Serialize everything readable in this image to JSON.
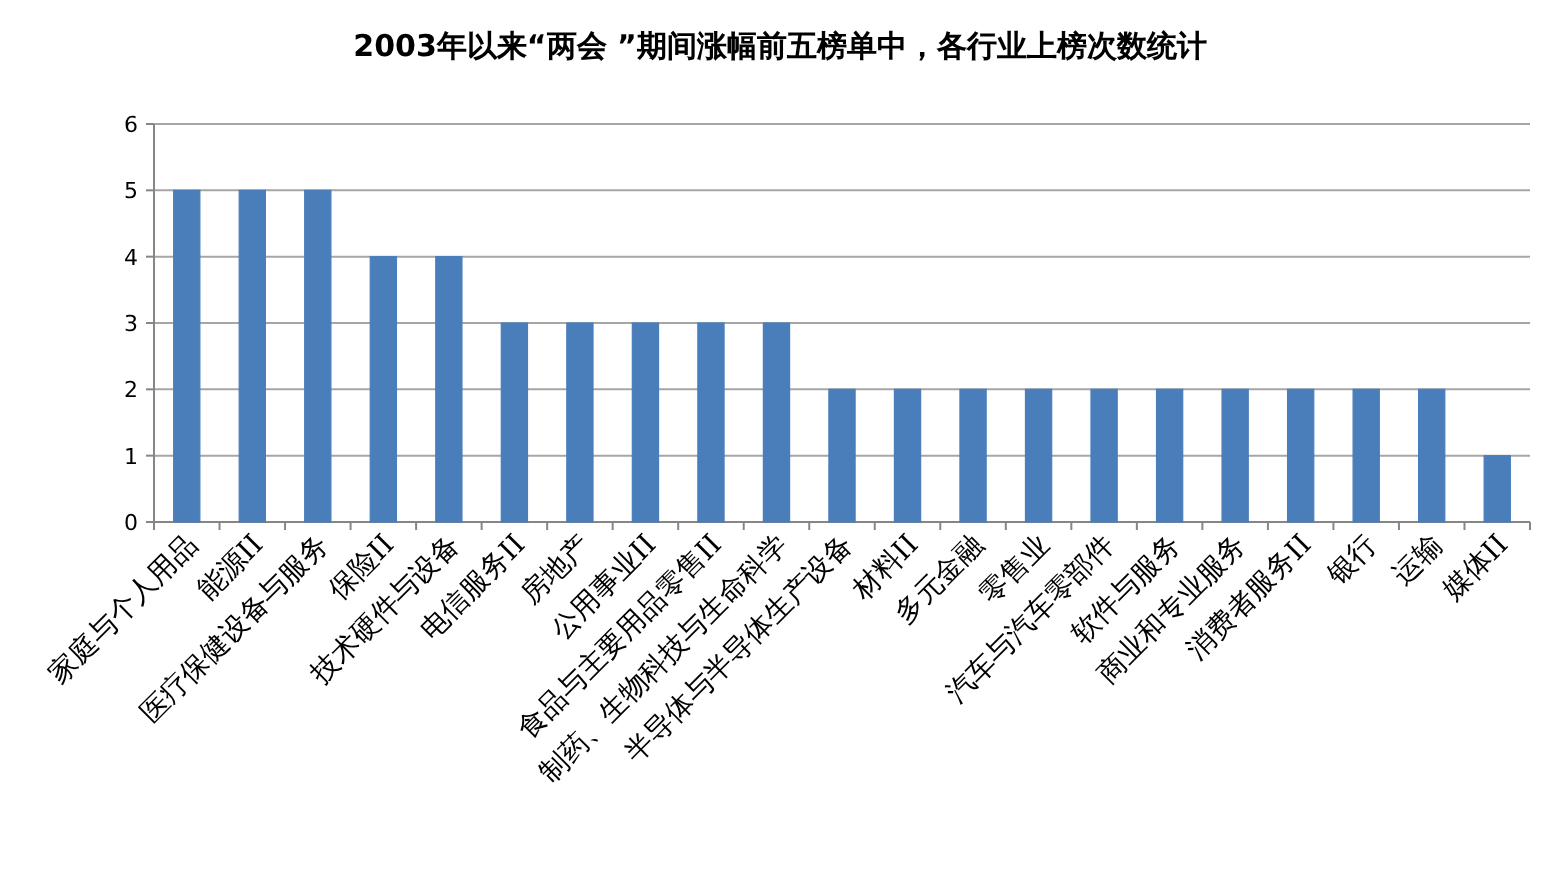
{
  "chart_data": {
    "type": "bar",
    "title": "2003年以来“两会 ”期间涨幅前五榜单中，各行业上榜次数统计",
    "categories": [
      "家庭与个人用品",
      "能源II",
      "医疗保健设备与服务",
      "保险II",
      "技术硬件与设备",
      "电信服务II",
      "房地产",
      "公用事业II",
      "食品与主要用品零售II",
      "制药、生物科技与生命科学",
      "半导体与半导体生产设备",
      "材料II",
      "多元金融",
      "零售业",
      "汽车与汽车零部件",
      "软件与服务",
      "商业和专业服务",
      "消费者服务II",
      "银行",
      "运输",
      "媒体II"
    ],
    "values": [
      5,
      5,
      5,
      4,
      4,
      3,
      3,
      3,
      3,
      3,
      2,
      2,
      2,
      2,
      2,
      2,
      2,
      2,
      2,
      2,
      1
    ],
    "color": "#4a7ebb",
    "ylim": [
      0,
      6
    ],
    "yticks": [
      0,
      1,
      2,
      3,
      4,
      5,
      6
    ],
    "grid": "y"
  }
}
